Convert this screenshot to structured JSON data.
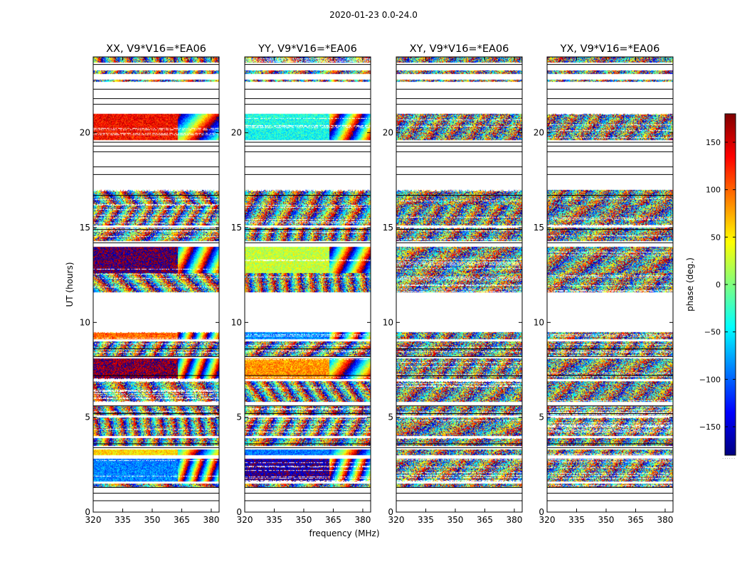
{
  "chart_data": {
    "type": "heatmap",
    "suptitle": "2020-01-23 0.0-24.0",
    "xlabel": "frequency (MHz)",
    "ylabel": "UT (hours)",
    "colorbar": {
      "label": "phase (deg.)",
      "range": [
        -180,
        180
      ],
      "ticks": [
        150,
        100,
        50,
        0,
        -50,
        -100,
        -150
      ],
      "tick_labels": [
        "150",
        "100",
        "50",
        "0",
        "−50",
        "−100",
        "−150"
      ],
      "colormap": [
        "#00007f",
        "#0000ff",
        "#007fff",
        "#00ffff",
        "#7fff7f",
        "#ffff00",
        "#ff7f00",
        "#ff0000",
        "#7f0000"
      ]
    },
    "xlim": [
      320,
      384
    ],
    "ylim": [
      0,
      24
    ],
    "xticks": [
      320,
      335,
      350,
      365,
      380
    ],
    "yticks": [
      0,
      5,
      10,
      15,
      20
    ],
    "panels": [
      {
        "title": "XX, V9*V16=*EA06",
        "base_phase": 150,
        "show_ylabels": true
      },
      {
        "title": "YY, V9*V16=*EA06",
        "base_phase": -20,
        "show_ylabels": true
      },
      {
        "title": "XY, V9*V16=*EA06",
        "base_phase": null,
        "show_ylabels": true
      },
      {
        "title": "YX, V9*V16=*EA06",
        "base_phase": null,
        "show_ylabels": true
      }
    ],
    "data_blocks_ut": [
      [
        1.3,
        1.5
      ],
      [
        1.6,
        2.8
      ],
      [
        3.0,
        3.3
      ],
      [
        3.5,
        3.9
      ],
      [
        4.0,
        5.0
      ],
      [
        5.1,
        5.6
      ],
      [
        5.8,
        6.9
      ],
      [
        7.0,
        8.1
      ],
      [
        8.2,
        9.0
      ],
      [
        9.1,
        9.5
      ],
      [
        11.6,
        12.6
      ],
      [
        12.6,
        14.0
      ],
      [
        14.3,
        15.0
      ],
      [
        15.1,
        16.2
      ],
      [
        16.2,
        17.0
      ],
      [
        19.6,
        21.0
      ],
      [
        22.7,
        22.8
      ],
      [
        23.1,
        23.3
      ],
      [
        23.7,
        24.0
      ]
    ],
    "scan_line_ut": [
      0.6,
      1.0,
      1.3,
      3.4,
      3.6,
      5.2,
      5.6,
      7.2,
      8.2,
      8.6,
      14.2,
      14.9,
      16.7,
      17.8,
      18.2,
      19.0,
      19.3,
      19.5,
      21.5,
      21.8,
      22.3,
      23.6
    ]
  }
}
